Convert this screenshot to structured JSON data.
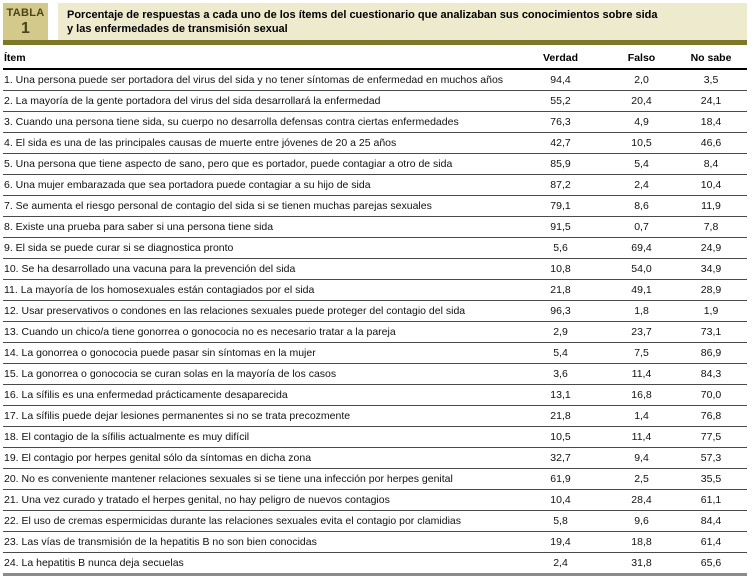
{
  "table_label": {
    "word": "TABLA",
    "number": "1"
  },
  "title": {
    "line1": "Porcentaje de respuestas a cada uno de los ítems del cuestionario que analizaban sus conocimientos sobre sida",
    "line2": "y las enfermedades de transmisión sexual"
  },
  "columns": {
    "item": "Ítem",
    "verdad": "Verdad",
    "falso": "Falso",
    "no_sabe": "No sabe"
  },
  "colors": {
    "tabla_box_bg": "#d2c98b",
    "tabla_box_text": "#4a4518",
    "title_band_bg": "#eeeacd",
    "olive_bar": "#7d7828",
    "bottom_bar": "#8a8a8a"
  },
  "rows": [
    {
      "item": "1. Una persona puede ser portadora del virus del sida y no tener síntomas de enfermedad en muchos años",
      "verdad": "94,4",
      "falso": "2,0",
      "no_sabe": "3,5"
    },
    {
      "item": "2. La mayoría de la gente portadora del virus del sida desarrollará la enfermedad",
      "verdad": "55,2",
      "falso": "20,4",
      "no_sabe": "24,1"
    },
    {
      "item": "3. Cuando una persona tiene sida, su cuerpo no desarrolla defensas contra ciertas enfermedades",
      "verdad": "76,3",
      "falso": "4,9",
      "no_sabe": "18,4"
    },
    {
      "item": "4. El sida es una de las principales causas de muerte entre jóvenes de 20 a 25 años",
      "verdad": "42,7",
      "falso": "10,5",
      "no_sabe": "46,6"
    },
    {
      "item": "5. Una persona que tiene aspecto de sano, pero que es portador, puede contagiar a otro de sida",
      "verdad": "85,9",
      "falso": "5,4",
      "no_sabe": "8,4"
    },
    {
      "item": "6. Una mujer embarazada que sea portadora puede contagiar a su hijo de sida",
      "verdad": "87,2",
      "falso": "2,4",
      "no_sabe": "10,4"
    },
    {
      "item": "7. Se aumenta el riesgo personal de contagio del sida si se tienen muchas parejas sexuales",
      "verdad": "79,1",
      "falso": "8,6",
      "no_sabe": "11,9"
    },
    {
      "item": "8. Existe una prueba para saber si una persona tiene sida",
      "verdad": "91,5",
      "falso": "0,7",
      "no_sabe": "7,8"
    },
    {
      "item": "9. El sida se puede curar si se diagnostica pronto",
      "verdad": "5,6",
      "falso": "69,4",
      "no_sabe": "24,9"
    },
    {
      "item": "10. Se ha desarrollado una vacuna para la prevención del sida",
      "verdad": "10,8",
      "falso": "54,0",
      "no_sabe": "34,9"
    },
    {
      "item": "11. La mayoría de los homosexuales están contagiados por el sida",
      "verdad": "21,8",
      "falso": "49,1",
      "no_sabe": "28,9"
    },
    {
      "item": "12. Usar preservativos o condones en las relaciones sexuales puede proteger del contagio del sida",
      "verdad": "96,3",
      "falso": "1,8",
      "no_sabe": "1,9"
    },
    {
      "item": "13. Cuando un chico/a tiene gonorrea o gonococia no es necesario tratar a la pareja",
      "verdad": "2,9",
      "falso": "23,7",
      "no_sabe": "73,1"
    },
    {
      "item": "14. La gonorrea o gonococia puede pasar sin síntomas en la mujer",
      "verdad": "5,4",
      "falso": "7,5",
      "no_sabe": "86,9"
    },
    {
      "item": "15. La gonorrea o gonococia se curan solas en la mayoría de los casos",
      "verdad": "3,6",
      "falso": "11,4",
      "no_sabe": "84,3"
    },
    {
      "item": "16. La sífilis es una enfermedad prácticamente desaparecida",
      "verdad": "13,1",
      "falso": "16,8",
      "no_sabe": "70,0"
    },
    {
      "item": "17. La sífilis puede dejar lesiones permanentes si no se trata precozmente",
      "verdad": "21,8",
      "falso": "1,4",
      "no_sabe": "76,8"
    },
    {
      "item": "18. El contagio de la sífilis actualmente es muy difícil",
      "verdad": "10,5",
      "falso": "11,4",
      "no_sabe": "77,5"
    },
    {
      "item": "19. El contagio por herpes genital sólo da síntomas en dicha zona",
      "verdad": "32,7",
      "falso": "9,4",
      "no_sabe": "57,3"
    },
    {
      "item": "20. No es conveniente mantener relaciones sexuales si se tiene una infección por herpes genital",
      "verdad": "61,9",
      "falso": "2,5",
      "no_sabe": "35,5"
    },
    {
      "item": "21. Una vez curado y tratado el herpes genital, no hay peligro de nuevos contagios",
      "verdad": "10,4",
      "falso": "28,4",
      "no_sabe": "61,1"
    },
    {
      "item": "22. El uso de cremas espermicidas durante las relaciones sexuales evita el contagio por clamidias",
      "verdad": "5,8",
      "falso": "9,6",
      "no_sabe": "84,4"
    },
    {
      "item": "23. Las vías de transmisión de la hepatitis B no son bien conocidas",
      "verdad": "19,4",
      "falso": "18,8",
      "no_sabe": "61,4"
    },
    {
      "item": "24. La hepatitis B nunca deja secuelas",
      "verdad": "2,4",
      "falso": "31,8",
      "no_sabe": "65,6"
    }
  ]
}
